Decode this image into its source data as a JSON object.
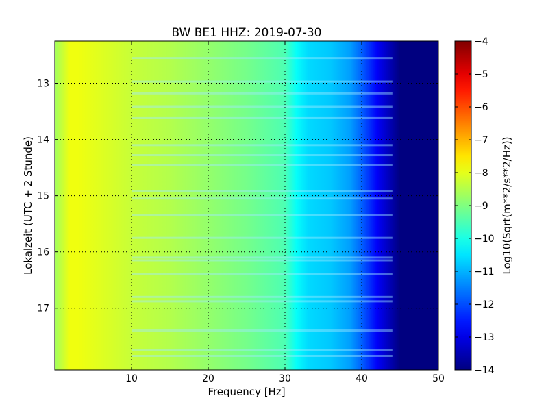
{
  "chart_data": {
    "type": "heatmap",
    "title": "BW BE1 HHZ: 2019-07-30",
    "xlabel": "Frequency [Hz]",
    "ylabel": "Lokalzeit (UTC + 2 Stunde)",
    "xlim": [
      0,
      50
    ],
    "ylim": [
      12.25,
      18.1
    ],
    "y_inverted": true,
    "x_ticks": [
      10,
      20,
      30,
      40,
      50
    ],
    "x_tick_labels": [
      "10",
      "20",
      "30",
      "40",
      "50"
    ],
    "y_ticks": [
      13,
      14,
      15,
      16,
      17
    ],
    "y_tick_labels": [
      "13",
      "14",
      "15",
      "16",
      "17"
    ],
    "grid": true,
    "colormap": "jet",
    "colorbar": {
      "label": "Log10(Sqrt(m**2/s**2/Hz))",
      "range": [
        -14,
        -4
      ],
      "ticks": [
        -4,
        -5,
        -6,
        -7,
        -8,
        -9,
        -10,
        -11,
        -12,
        -13,
        -14
      ],
      "tick_labels": [
        "−4",
        "−5",
        "−6",
        "−7",
        "−8",
        "−9",
        "−10",
        "−11",
        "−12",
        "−13",
        "−14"
      ]
    },
    "spectrum_profile": {
      "frequency_hz": [
        0.2,
        2,
        3,
        5,
        10,
        15,
        20,
        25,
        30,
        31.5,
        33,
        36,
        38.5,
        40,
        42,
        44,
        45,
        50
      ],
      "log10_amplitude": [
        -8.6,
        -7.9,
        -7.9,
        -8.0,
        -8.3,
        -8.5,
        -8.8,
        -9.1,
        -9.5,
        -10.2,
        -10.6,
        -10.8,
        -11.2,
        -11.8,
        -12.8,
        -13.6,
        -14,
        -14
      ]
    },
    "time_banding_hours": [
      12.55,
      12.97,
      13.18,
      13.42,
      13.62,
      14.1,
      14.28,
      14.45,
      14.92,
      15.05,
      15.35,
      15.75,
      16.1,
      16.15,
      16.4,
      16.8,
      16.88,
      17.4,
      17.75,
      17.85
    ]
  }
}
